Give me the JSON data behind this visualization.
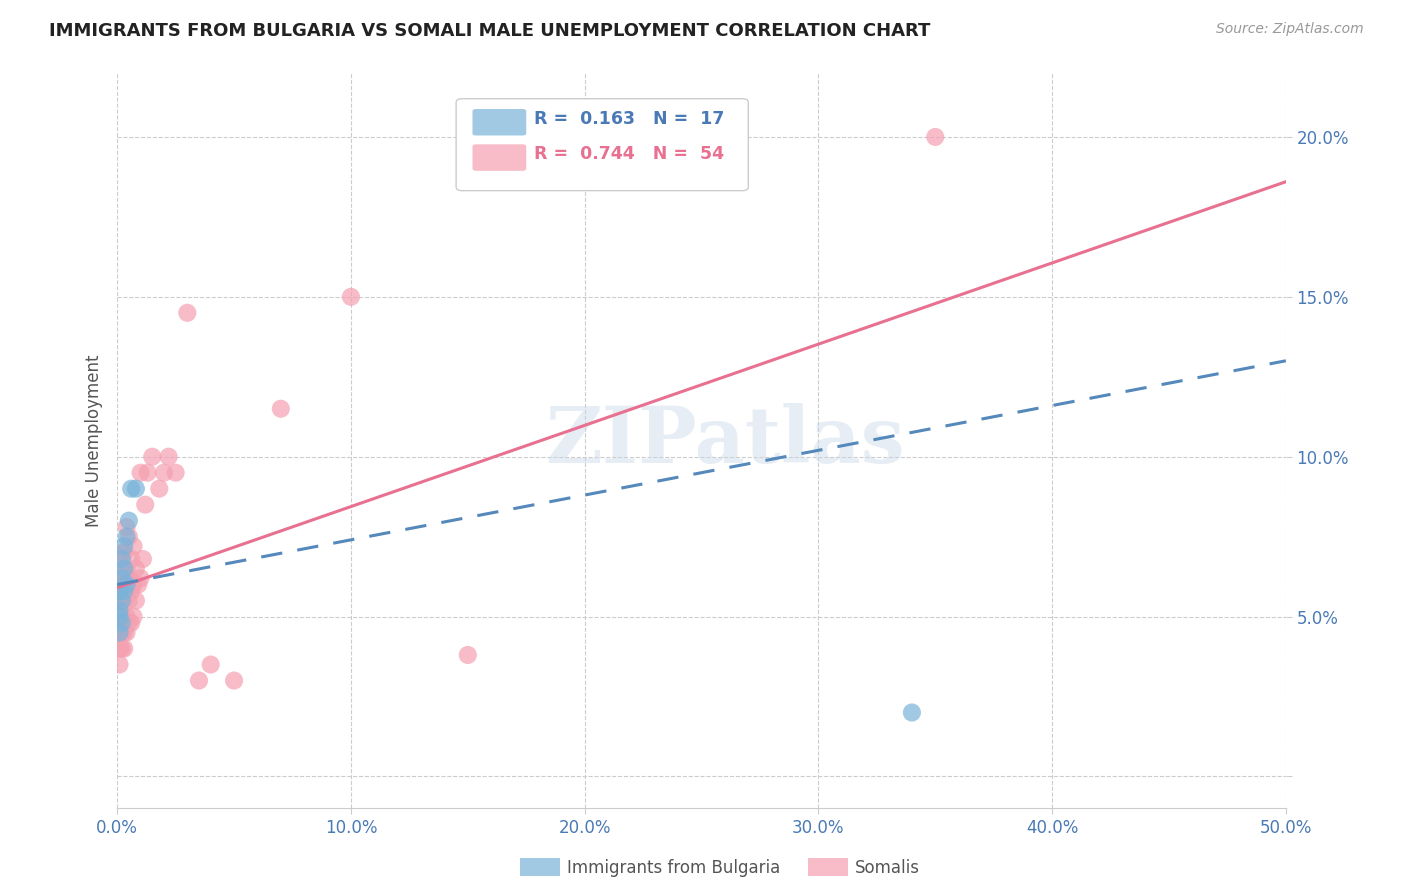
{
  "title": "IMMIGRANTS FROM BULGARIA VS SOMALI MALE UNEMPLOYMENT CORRELATION CHART",
  "source": "Source: ZipAtlas.com",
  "ylabel": "Male Unemployment",
  "xlim": [
    0.0,
    0.5
  ],
  "ylim": [
    -0.01,
    0.22
  ],
  "ytick_vals": [
    0.0,
    0.05,
    0.1,
    0.15,
    0.2
  ],
  "xtick_vals": [
    0.0,
    0.1,
    0.2,
    0.3,
    0.4,
    0.5
  ],
  "watermark_text": "ZIPatlas",
  "bulgaria_color": "#7ab3d9",
  "somali_color": "#f4a0b0",
  "bulgaria_line_color": "#5588bb",
  "somali_line_color": "#e87090",
  "bg_color": "#ffffff",
  "grid_color": "#cccccc",
  "legend_r1": "R =  0.163",
  "legend_n1": "N =  17",
  "legend_r2": "R =  0.744",
  "legend_n2": "N =  54",
  "r_bulgaria": 0.163,
  "r_somali": 0.744,
  "n_bulgaria": 17,
  "n_somali": 54,
  "bulgaria_x": [
    0.001,
    0.001,
    0.001,
    0.001,
    0.002,
    0.002,
    0.002,
    0.002,
    0.003,
    0.003,
    0.003,
    0.004,
    0.004,
    0.005,
    0.006,
    0.008,
    0.34
  ],
  "bulgaria_y": [
    0.05,
    0.045,
    0.058,
    0.052,
    0.062,
    0.068,
    0.055,
    0.048,
    0.072,
    0.065,
    0.058,
    0.075,
    0.06,
    0.08,
    0.09,
    0.09,
    0.02
  ],
  "somali_x": [
    0.001,
    0.001,
    0.001,
    0.001,
    0.001,
    0.001,
    0.001,
    0.002,
    0.002,
    0.002,
    0.002,
    0.002,
    0.002,
    0.003,
    0.003,
    0.003,
    0.003,
    0.003,
    0.004,
    0.004,
    0.004,
    0.004,
    0.004,
    0.005,
    0.005,
    0.005,
    0.005,
    0.006,
    0.006,
    0.006,
    0.007,
    0.007,
    0.007,
    0.008,
    0.008,
    0.009,
    0.01,
    0.01,
    0.011,
    0.012,
    0.013,
    0.015,
    0.018,
    0.02,
    0.022,
    0.025,
    0.03,
    0.035,
    0.04,
    0.05,
    0.07,
    0.1,
    0.15,
    0.35
  ],
  "somali_y": [
    0.035,
    0.04,
    0.045,
    0.05,
    0.055,
    0.06,
    0.065,
    0.04,
    0.045,
    0.05,
    0.055,
    0.06,
    0.07,
    0.04,
    0.045,
    0.055,
    0.06,
    0.07,
    0.045,
    0.05,
    0.058,
    0.065,
    0.078,
    0.048,
    0.055,
    0.062,
    0.075,
    0.048,
    0.058,
    0.068,
    0.05,
    0.06,
    0.072,
    0.055,
    0.065,
    0.06,
    0.062,
    0.095,
    0.068,
    0.085,
    0.095,
    0.1,
    0.09,
    0.095,
    0.1,
    0.095,
    0.145,
    0.03,
    0.035,
    0.03,
    0.115,
    0.15,
    0.038,
    0.2
  ],
  "somali_line_x0": 0.0,
  "somali_line_y0": 0.059,
  "somali_line_x1": 0.5,
  "somali_line_y1": 0.186,
  "bulgaria_line_x0": 0.0,
  "bulgaria_line_y0": 0.06,
  "bulgaria_line_x1": 0.5,
  "bulgaria_line_y1": 0.13
}
